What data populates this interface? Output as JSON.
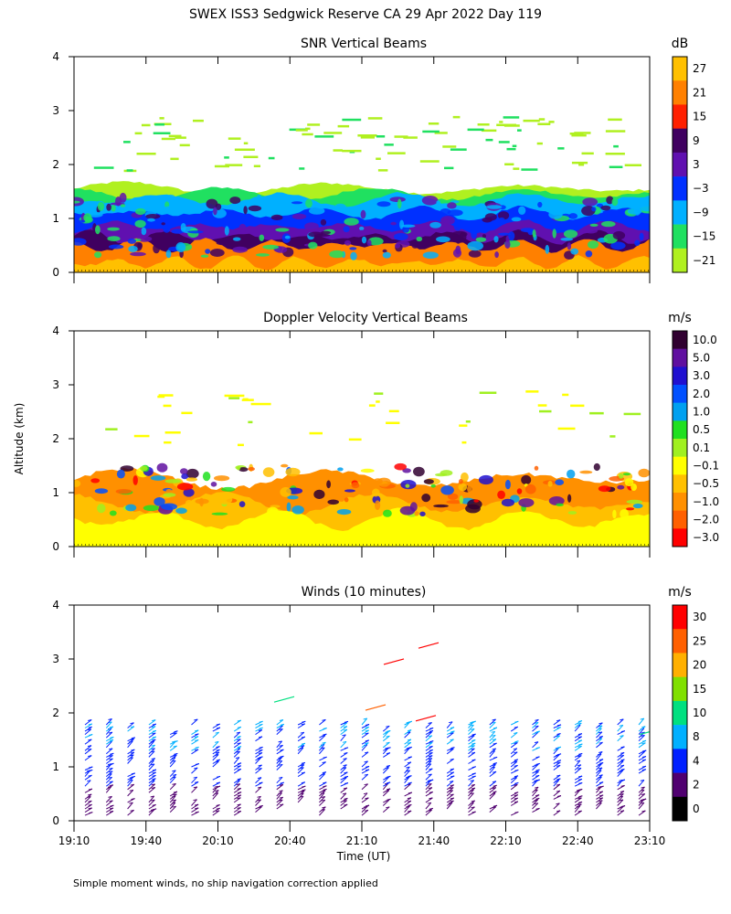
{
  "figure": {
    "title": "SWEX ISS3 Sedgwick Reserve CA  29 Apr 2022 Day 119",
    "ylabel": "Altitude (km)",
    "xlabel": "Time (UT)",
    "footnote": "Simple moment winds, no ship navigation correction applied",
    "x_ticks": [
      "19:10",
      "19:40",
      "20:10",
      "20:40",
      "21:10",
      "21:40",
      "22:10",
      "22:40",
      "23:10"
    ],
    "y_ticks": [
      "0",
      "1",
      "2",
      "3",
      "4"
    ]
  },
  "chart_data": [
    {
      "type": "heatmap",
      "title": "SNR Vertical Beams",
      "unit": "dB",
      "ylim": [
        0,
        4
      ],
      "colorbar": {
        "labels": [
          "27",
          "21",
          "15",
          "9",
          "3",
          "−3",
          "−9",
          "−15",
          "−21"
        ],
        "colors": [
          "#ffc000",
          "#ff8000",
          "#ff2000",
          "#400060",
          "#6010b0",
          "#0030ff",
          "#00b0ff",
          "#20e060",
          "#b0f020"
        ]
      },
      "layers": [
        {
          "level": "27",
          "top_km": 0.18
        },
        {
          "level": "21",
          "top_km": 0.5
        },
        {
          "level": "9",
          "top_km": 0.65
        },
        {
          "level": "3",
          "top_km": 0.85
        },
        {
          "level": "-3",
          "top_km": 1.1
        },
        {
          "level": "-9",
          "top_km": 1.35
        },
        {
          "level": "-15",
          "top_km": 1.45
        },
        {
          "level": "-21",
          "top_km": 1.55
        }
      ]
    },
    {
      "type": "heatmap",
      "title": "Doppler Velocity Vertical Beams",
      "unit": "m/s",
      "ylim": [
        0,
        4
      ],
      "colorbar": {
        "labels": [
          "10.0",
          "5.0",
          "3.0",
          "2.0",
          "1.0",
          "0.5",
          "0.1",
          "−0.1",
          "−0.5",
          "−1.0",
          "−2.0",
          "−3.0"
        ],
        "colors": [
          "#300030",
          "#6010a0",
          "#2010d0",
          "#0050ff",
          "#00a0f0",
          "#20e020",
          "#a0f020",
          "#ffff00",
          "#ffc000",
          "#ff9000",
          "#ff6000",
          "#ff0000"
        ]
      },
      "layers": [
        {
          "level": "-0.1",
          "top_km": 0.5
        },
        {
          "level": "-0.5",
          "top_km": 0.8
        },
        {
          "level": "-1.0",
          "top_km": 1.25
        }
      ]
    },
    {
      "type": "scatter",
      "title": "Winds (10 minutes)",
      "unit": "m/s",
      "ylim": [
        0,
        4
      ],
      "colorbar": {
        "labels": [
          "30",
          "25",
          "20",
          "15",
          "10",
          "8",
          "4",
          "2",
          "0"
        ],
        "colors": [
          "#ff0000",
          "#ff6000",
          "#ffb000",
          "#80e000",
          "#00e080",
          "#00b0ff",
          "#0020ff",
          "#500070",
          "#000000"
        ]
      }
    }
  ]
}
